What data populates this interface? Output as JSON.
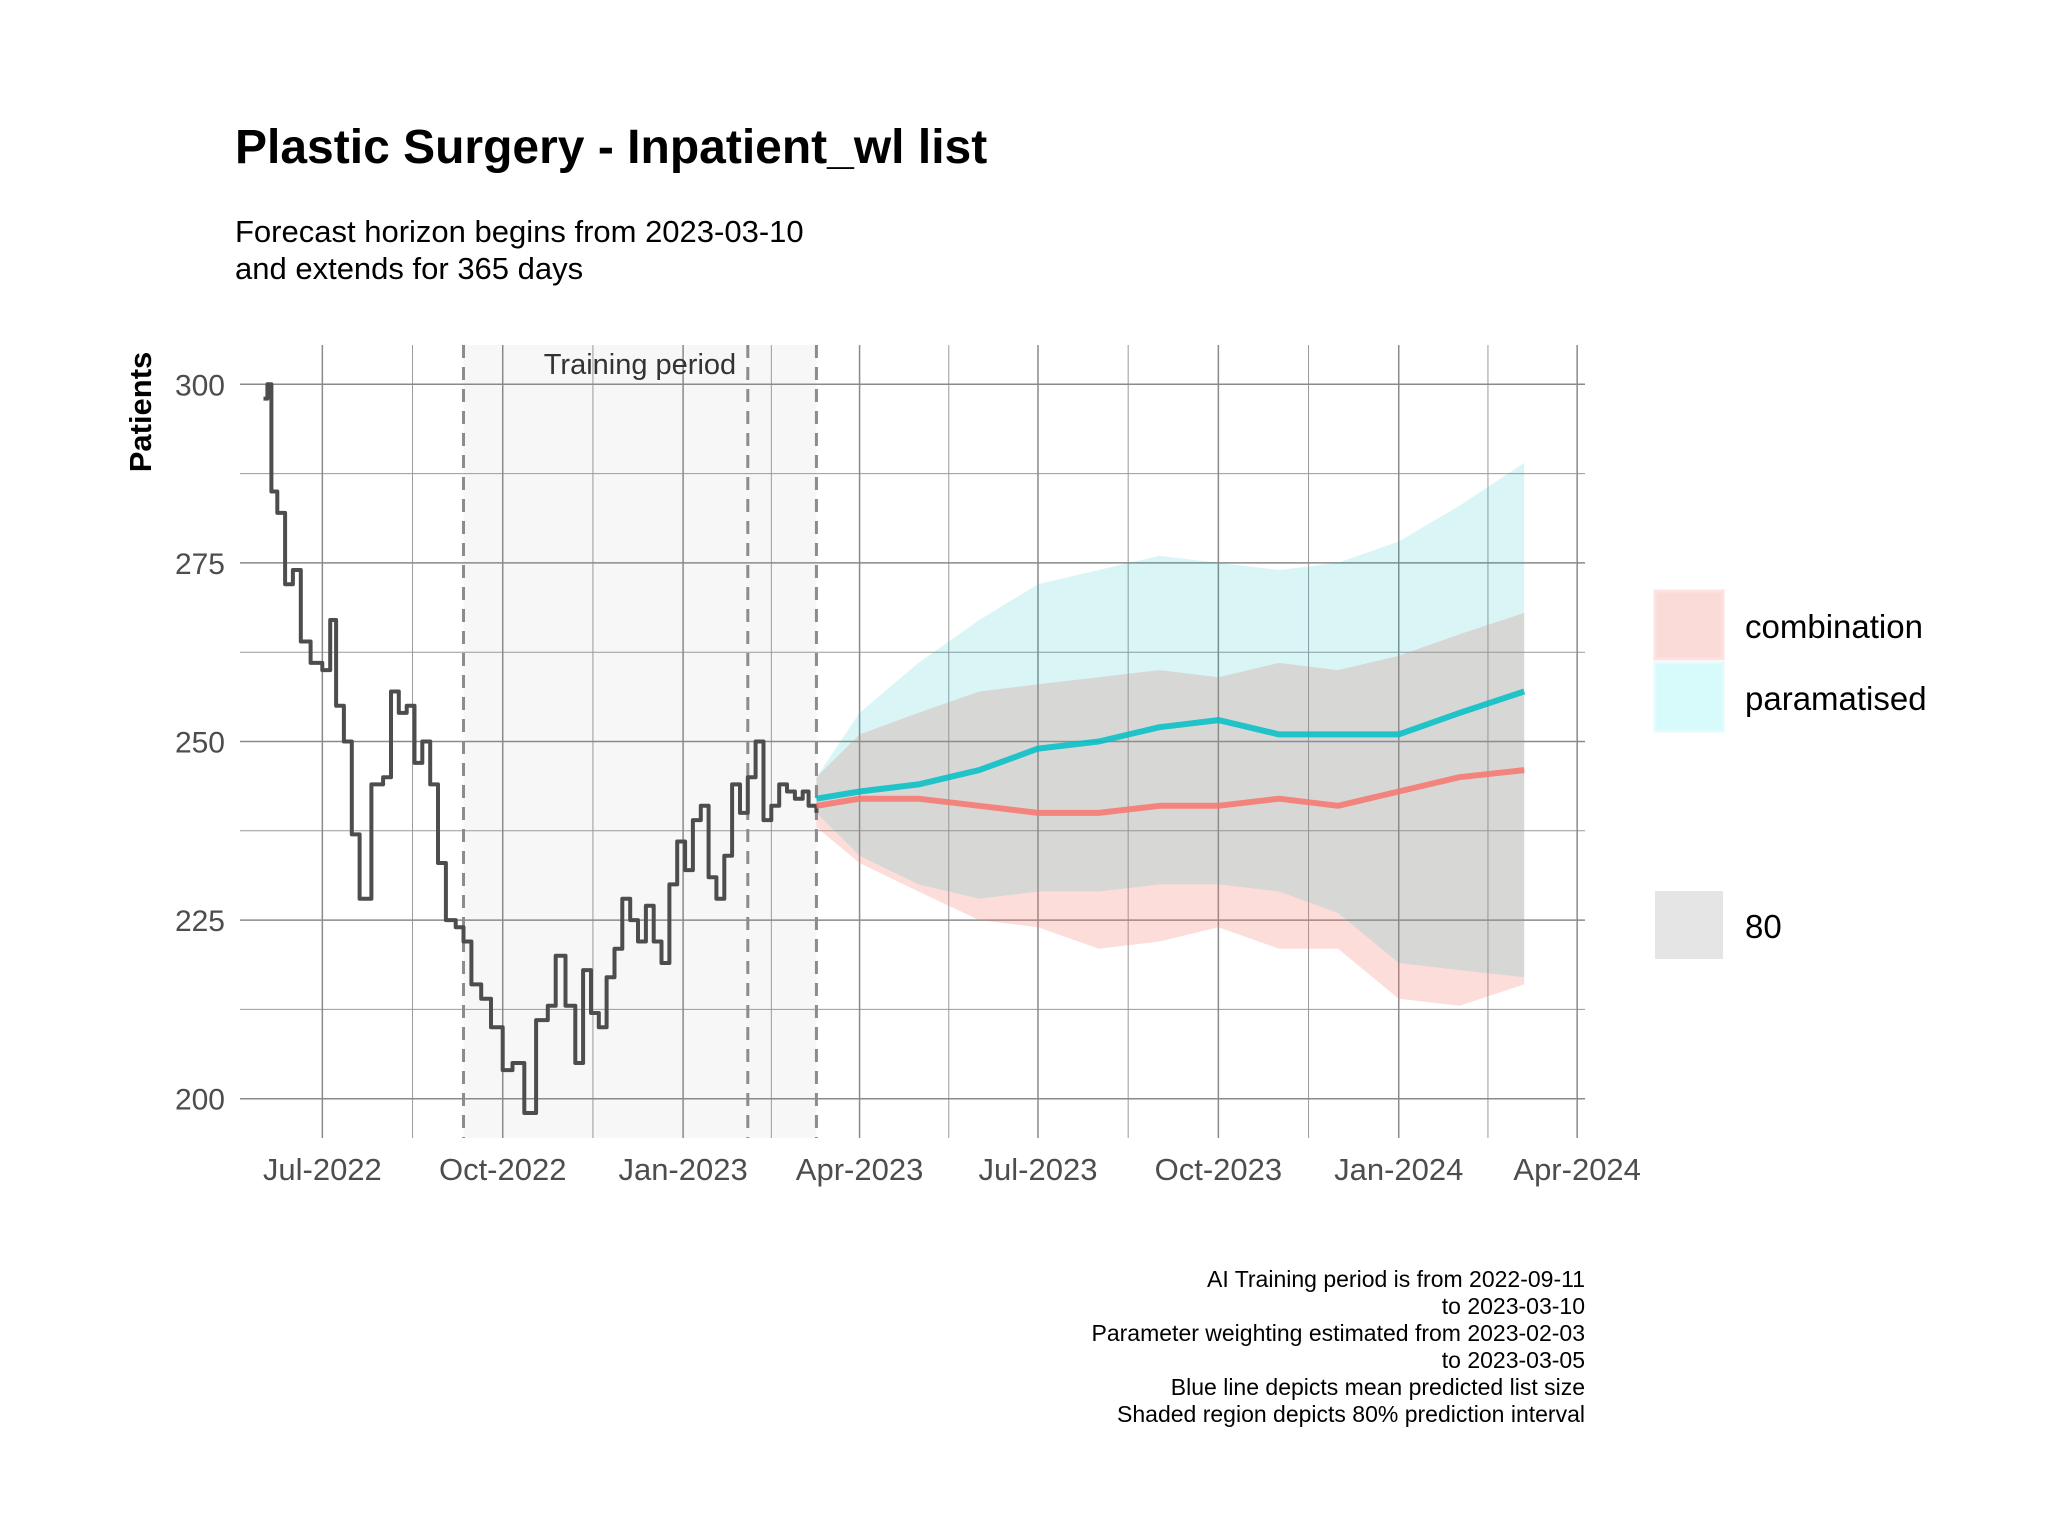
{
  "chart_data": {
    "type": "line",
    "title": "Plastic Surgery - Inpatient_wl list",
    "subtitle_lines": [
      "Forecast horizon begins from 2023-03-10",
      "and extends for 365 days"
    ],
    "ylabel": "Patients",
    "xlabel": "",
    "ylim": [
      194.5,
      305.5
    ],
    "xlim": [
      "2022-05-20",
      "2024-04-05"
    ],
    "y_ticks": [
      200,
      225,
      250,
      275,
      300
    ],
    "x_ticks": [
      {
        "date": "2022-07-01",
        "label": "Jul-2022"
      },
      {
        "date": "2022-10-01",
        "label": "Oct-2022"
      },
      {
        "date": "2023-01-01",
        "label": "Jan-2023"
      },
      {
        "date": "2023-04-01",
        "label": "Apr-2023"
      },
      {
        "date": "2023-07-01",
        "label": "Jul-2023"
      },
      {
        "date": "2023-10-01",
        "label": "Oct-2023"
      },
      {
        "date": "2024-01-01",
        "label": "Jan-2024"
      },
      {
        "date": "2024-04-01",
        "label": "Apr-2024"
      }
    ],
    "grid": true,
    "training_period": {
      "start": "2022-09-11",
      "end": "2023-03-10",
      "label": "Training period"
    },
    "vlines": [
      "2022-09-11",
      "2023-02-03",
      "2023-03-10"
    ],
    "observed": {
      "x": [
        "2022-06-01",
        "2022-06-03",
        "2022-06-05",
        "2022-06-08",
        "2022-06-12",
        "2022-06-16",
        "2022-06-20",
        "2022-06-25",
        "2022-07-01",
        "2022-07-05",
        "2022-07-08",
        "2022-07-12",
        "2022-07-16",
        "2022-07-20",
        "2022-07-26",
        "2022-08-01",
        "2022-08-05",
        "2022-08-09",
        "2022-08-13",
        "2022-08-17",
        "2022-08-21",
        "2022-08-25",
        "2022-08-29",
        "2022-09-02",
        "2022-09-07",
        "2022-09-11",
        "2022-09-15",
        "2022-09-20",
        "2022-09-25",
        "2022-10-01",
        "2022-10-06",
        "2022-10-12",
        "2022-10-18",
        "2022-10-24",
        "2022-10-28",
        "2022-11-02",
        "2022-11-07",
        "2022-11-11",
        "2022-11-15",
        "2022-11-19",
        "2022-11-23",
        "2022-11-27",
        "2022-12-01",
        "2022-12-05",
        "2022-12-09",
        "2022-12-13",
        "2022-12-17",
        "2022-12-21",
        "2022-12-25",
        "2022-12-29",
        "2023-01-02",
        "2023-01-06",
        "2023-01-10",
        "2023-01-14",
        "2023-01-18",
        "2023-01-22",
        "2023-01-26",
        "2023-01-30",
        "2023-02-03",
        "2023-02-07",
        "2023-02-11",
        "2023-02-15",
        "2023-02-19",
        "2023-02-23",
        "2023-02-27",
        "2023-03-03",
        "2023-03-06",
        "2023-03-10"
      ],
      "y": [
        298,
        300,
        285,
        282,
        272,
        274,
        264,
        261,
        260,
        267,
        255,
        250,
        237,
        228,
        244,
        245,
        257,
        254,
        255,
        247,
        250,
        244,
        233,
        225,
        224,
        222,
        216,
        214,
        210,
        204,
        205,
        198,
        211,
        213,
        220,
        213,
        205,
        218,
        212,
        210,
        217,
        221,
        228,
        225,
        222,
        227,
        222,
        219,
        230,
        236,
        232,
        239,
        241,
        231,
        228,
        234,
        244,
        240,
        245,
        250,
        239,
        241,
        244,
        243,
        242,
        243,
        241,
        240
      ]
    },
    "series": [
      {
        "name": "combination",
        "color": "#F8766D",
        "x": [
          "2023-03-10",
          "2023-04-01",
          "2023-05-01",
          "2023-06-01",
          "2023-07-01",
          "2023-08-01",
          "2023-09-01",
          "2023-10-01",
          "2023-11-01",
          "2023-12-01",
          "2024-01-01",
          "2024-02-01",
          "2024-03-05"
        ],
        "mean": [
          241,
          242,
          242,
          241,
          240,
          240,
          241,
          241,
          242,
          241,
          243,
          245,
          246
        ],
        "lower": [
          238,
          233,
          229,
          225,
          224,
          221,
          222,
          224,
          221,
          221,
          214,
          213,
          216
        ],
        "upper": [
          245,
          251,
          254,
          257,
          258,
          259,
          260,
          259,
          261,
          260,
          262,
          265,
          268
        ]
      },
      {
        "name": "paramatised",
        "color": "#00BFC4",
        "x": [
          "2023-03-10",
          "2023-04-01",
          "2023-05-01",
          "2023-06-01",
          "2023-07-01",
          "2023-08-01",
          "2023-09-01",
          "2023-10-01",
          "2023-11-01",
          "2023-12-01",
          "2024-01-01",
          "2024-02-01",
          "2024-03-05"
        ],
        "mean": [
          242,
          243,
          244,
          246,
          249,
          250,
          252,
          253,
          251,
          251,
          251,
          254,
          257
        ],
        "lower": [
          240,
          234,
          230,
          228,
          229,
          229,
          230,
          230,
          229,
          226,
          219,
          218,
          217
        ],
        "upper": [
          245,
          254,
          261,
          267,
          272,
          274,
          276,
          275,
          274,
          275,
          278,
          283,
          289
        ]
      }
    ],
    "legend": {
      "position": "right",
      "entries": [
        {
          "label": "combination",
          "color": "#F8766D"
        },
        {
          "label": "paramatised",
          "color": "#00BFC4"
        }
      ],
      "interval_label": "80"
    },
    "caption_lines": [
      "AI Training period is from 2022-09-11",
      "to 2023-03-10",
      "Parameter weighting estimated from 2023-02-03",
      "to 2023-03-05",
      "Blue line depicts mean predicted list size",
      "Shaded region depicts 80% prediction interval"
    ]
  }
}
